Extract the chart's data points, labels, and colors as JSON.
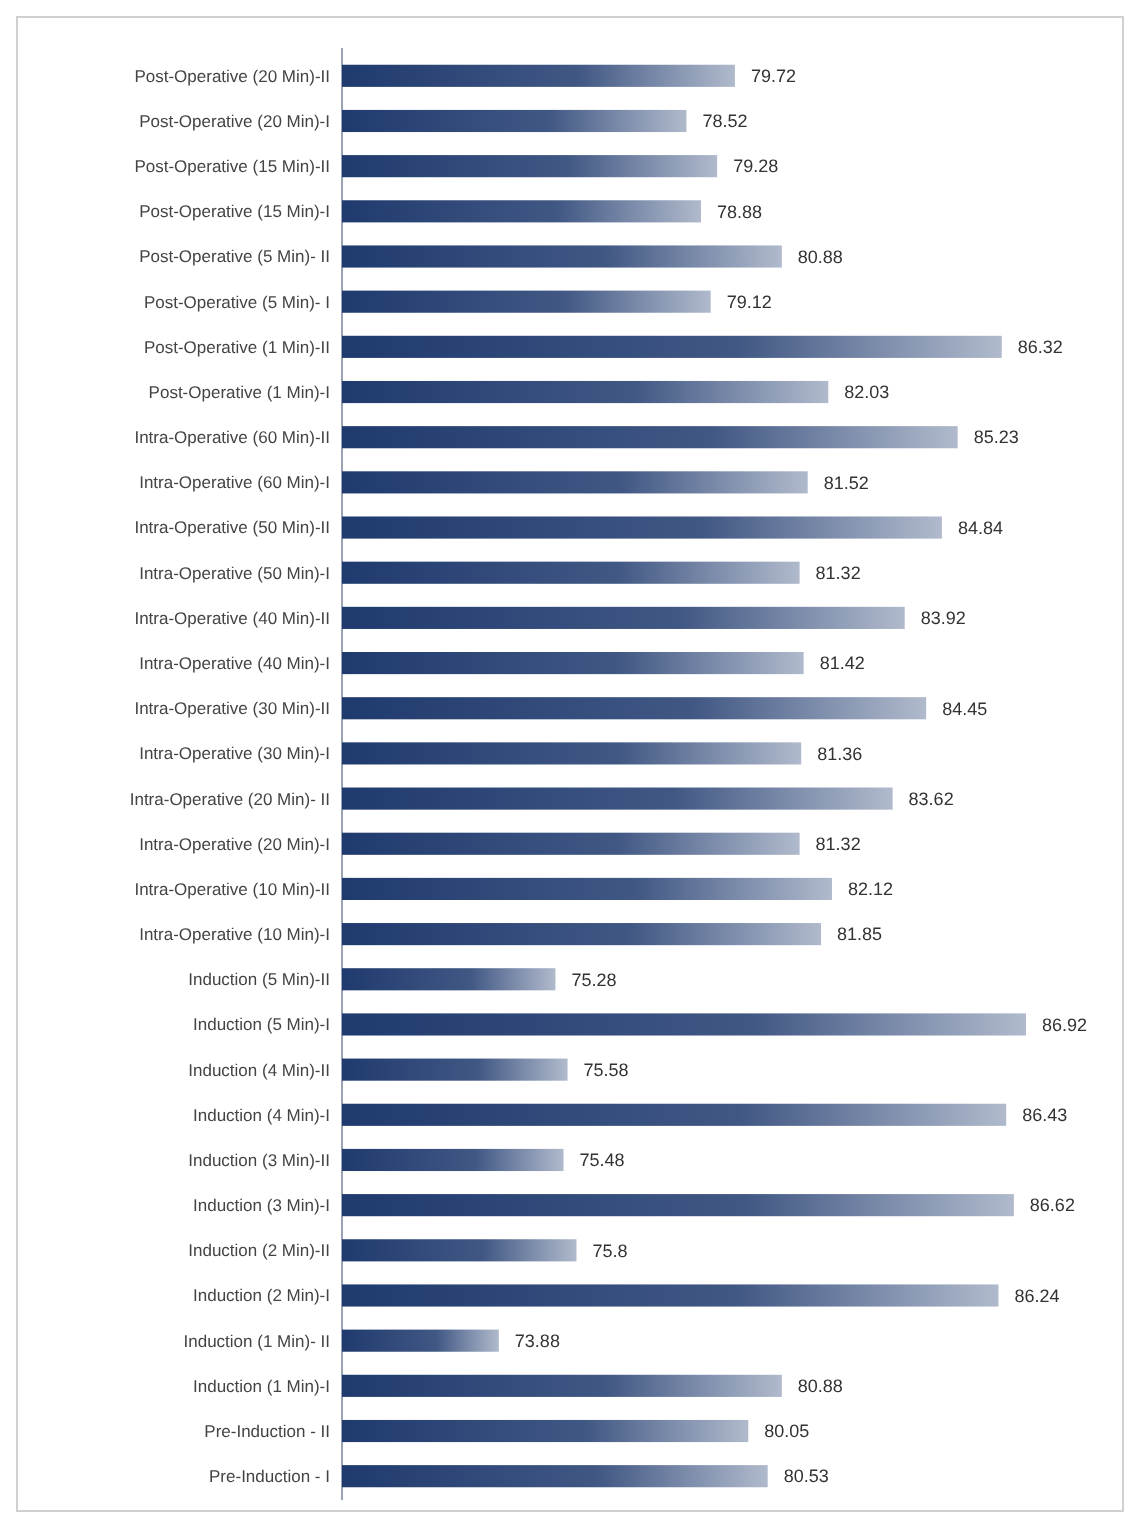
{
  "chart_data": {
    "type": "bar",
    "orientation": "horizontal",
    "data_labels": true,
    "tick_labels": "y",
    "xlim": [
      70,
      86.92
    ],
    "color": "#1f3a6e",
    "categories": [
      "Post-Operative (20 Min)-II",
      "Post-Operative (20 Min)-I",
      "Post-Operative (15 Min)-II",
      "Post-Operative (15 Min)-I",
      "Post-Operative (5 Min)- II",
      "Post-Operative (5 Min)- I",
      "Post-Operative (1 Min)-II",
      "Post-Operative (1 Min)-I",
      "Intra-Operative (60 Min)-II",
      "Intra-Operative (60 Min)-I",
      "Intra-Operative (50 Min)-II",
      "Intra-Operative (50 Min)-I",
      "Intra-Operative (40 Min)-II",
      "Intra-Operative (40 Min)-I",
      "Intra-Operative (30 Min)-II",
      "Intra-Operative (30 Min)-I",
      "Intra-Operative (20 Min)- II",
      "Intra-Operative (20 Min)-I",
      "Intra-Operative (10 Min)-II",
      "Intra-Operative (10 Min)-I",
      "Induction (5 Min)-II",
      "Induction (5 Min)-I",
      "Induction (4 Min)-II",
      "Induction (4 Min)-I",
      "Induction (3 Min)-II",
      "Induction (3 Min)-I",
      "Induction (2 Min)-II",
      "Induction (2 Min)-I",
      "Induction (1 Min)- II",
      "Induction (1 Min)-I",
      "Pre-Induction - II",
      "Pre-Induction - I"
    ],
    "values": [
      79.72,
      78.52,
      79.28,
      78.88,
      80.88,
      79.12,
      86.32,
      82.03,
      85.23,
      81.52,
      84.84,
      81.32,
      83.92,
      81.42,
      84.45,
      81.36,
      83.62,
      81.32,
      82.12,
      81.85,
      75.28,
      86.92,
      75.58,
      86.43,
      75.48,
      86.62,
      75.8,
      86.24,
      73.88,
      80.88,
      80.05,
      80.53
    ]
  }
}
